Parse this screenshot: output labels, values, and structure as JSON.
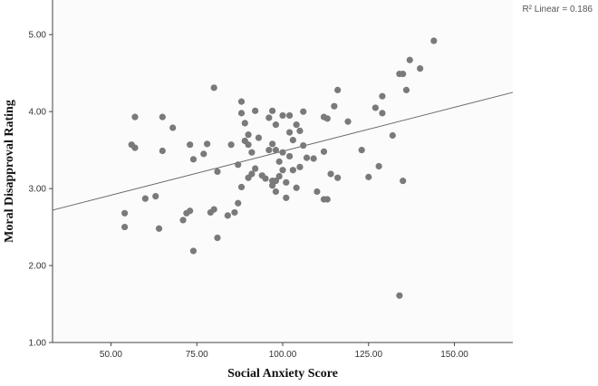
{
  "chart_data": {
    "type": "scatter",
    "title": "",
    "xlabel": "Social Anxiety Score",
    "ylabel": "Moral Disapproval Rating",
    "xlim": [
      33,
      167
    ],
    "ylim": [
      1.0,
      5.45
    ],
    "x_ticks": [
      "50.00",
      "75.00",
      "100.00",
      "125.00",
      "150.00"
    ],
    "y_ticks": [
      "1.00",
      "2.00",
      "3.00",
      "4.00",
      "5.00"
    ],
    "annotation": "R² Linear = 0.186",
    "fit_line": {
      "x": [
        33,
        167
      ],
      "y": [
        2.72,
        4.25
      ]
    },
    "colors": {
      "points": "#7a7a7a",
      "line": "#666666",
      "axis": "#444444",
      "plot_bg": "#fbfbfb"
    },
    "points": [
      {
        "x": 54.0,
        "y": 2.68
      },
      {
        "x": 54.0,
        "y": 2.5
      },
      {
        "x": 56.0,
        "y": 3.57
      },
      {
        "x": 57.0,
        "y": 3.53
      },
      {
        "x": 57.0,
        "y": 3.93
      },
      {
        "x": 60.0,
        "y": 2.87
      },
      {
        "x": 63.0,
        "y": 2.9
      },
      {
        "x": 64.0,
        "y": 2.48
      },
      {
        "x": 65.0,
        "y": 3.93
      },
      {
        "x": 65.0,
        "y": 3.49
      },
      {
        "x": 68.0,
        "y": 3.79
      },
      {
        "x": 71.0,
        "y": 2.59
      },
      {
        "x": 72.0,
        "y": 2.68
      },
      {
        "x": 73.0,
        "y": 3.57
      },
      {
        "x": 73.0,
        "y": 2.71
      },
      {
        "x": 74.0,
        "y": 3.38
      },
      {
        "x": 74.0,
        "y": 2.19
      },
      {
        "x": 77.0,
        "y": 3.45
      },
      {
        "x": 78.0,
        "y": 3.58
      },
      {
        "x": 79.0,
        "y": 2.69
      },
      {
        "x": 80.0,
        "y": 4.31
      },
      {
        "x": 80.0,
        "y": 2.73
      },
      {
        "x": 81.0,
        "y": 3.22
      },
      {
        "x": 81.0,
        "y": 2.36
      },
      {
        "x": 84.0,
        "y": 2.65
      },
      {
        "x": 85.0,
        "y": 3.57
      },
      {
        "x": 86.0,
        "y": 2.69
      },
      {
        "x": 87.0,
        "y": 3.31
      },
      {
        "x": 87.0,
        "y": 2.81
      },
      {
        "x": 88.0,
        "y": 4.13
      },
      {
        "x": 88.0,
        "y": 3.98
      },
      {
        "x": 88.0,
        "y": 3.02
      },
      {
        "x": 89.0,
        "y": 3.85
      },
      {
        "x": 89.0,
        "y": 3.62
      },
      {
        "x": 90.0,
        "y": 3.7
      },
      {
        "x": 90.0,
        "y": 3.57
      },
      {
        "x": 90.0,
        "y": 3.14
      },
      {
        "x": 91.0,
        "y": 3.47
      },
      {
        "x": 91.0,
        "y": 3.19
      },
      {
        "x": 92.0,
        "y": 4.01
      },
      {
        "x": 92.0,
        "y": 3.26
      },
      {
        "x": 93.0,
        "y": 3.66
      },
      {
        "x": 94.0,
        "y": 3.17
      },
      {
        "x": 95.0,
        "y": 3.13
      },
      {
        "x": 96.0,
        "y": 3.92
      },
      {
        "x": 96.0,
        "y": 3.5
      },
      {
        "x": 97.0,
        "y": 4.01
      },
      {
        "x": 97.0,
        "y": 3.58
      },
      {
        "x": 97.0,
        "y": 3.1
      },
      {
        "x": 97.0,
        "y": 3.04
      },
      {
        "x": 98.0,
        "y": 3.83
      },
      {
        "x": 98.0,
        "y": 3.5
      },
      {
        "x": 98.0,
        "y": 3.1
      },
      {
        "x": 98.0,
        "y": 2.96
      },
      {
        "x": 99.0,
        "y": 3.35
      },
      {
        "x": 99.0,
        "y": 3.16
      },
      {
        "x": 100.0,
        "y": 3.95
      },
      {
        "x": 100.0,
        "y": 3.47
      },
      {
        "x": 100.0,
        "y": 3.24
      },
      {
        "x": 101.0,
        "y": 3.08
      },
      {
        "x": 101.0,
        "y": 2.88
      },
      {
        "x": 102.0,
        "y": 3.95
      },
      {
        "x": 102.0,
        "y": 3.73
      },
      {
        "x": 102.0,
        "y": 3.42
      },
      {
        "x": 103.0,
        "y": 3.63
      },
      {
        "x": 103.0,
        "y": 3.24
      },
      {
        "x": 104.0,
        "y": 3.83
      },
      {
        "x": 104.0,
        "y": 3.01
      },
      {
        "x": 105.0,
        "y": 3.75
      },
      {
        "x": 105.0,
        "y": 3.28
      },
      {
        "x": 106.0,
        "y": 4.0
      },
      {
        "x": 106.0,
        "y": 3.56
      },
      {
        "x": 107.0,
        "y": 3.4
      },
      {
        "x": 109.0,
        "y": 3.39
      },
      {
        "x": 110.0,
        "y": 2.96
      },
      {
        "x": 112.0,
        "y": 3.93
      },
      {
        "x": 112.0,
        "y": 3.48
      },
      {
        "x": 112.0,
        "y": 2.86
      },
      {
        "x": 113.0,
        "y": 3.91
      },
      {
        "x": 113.0,
        "y": 2.86
      },
      {
        "x": 114.0,
        "y": 3.19
      },
      {
        "x": 115.0,
        "y": 4.07
      },
      {
        "x": 116.0,
        "y": 4.28
      },
      {
        "x": 116.0,
        "y": 3.14
      },
      {
        "x": 119.0,
        "y": 3.87
      },
      {
        "x": 123.0,
        "y": 3.5
      },
      {
        "x": 125.0,
        "y": 3.15
      },
      {
        "x": 127.0,
        "y": 4.05
      },
      {
        "x": 128.0,
        "y": 3.29
      },
      {
        "x": 129.0,
        "y": 4.2
      },
      {
        "x": 129.0,
        "y": 3.98
      },
      {
        "x": 132.0,
        "y": 3.69
      },
      {
        "x": 134.0,
        "y": 4.49
      },
      {
        "x": 134.0,
        "y": 1.61
      },
      {
        "x": 135.0,
        "y": 4.49
      },
      {
        "x": 135.0,
        "y": 3.1
      },
      {
        "x": 136.0,
        "y": 4.28
      },
      {
        "x": 137.0,
        "y": 4.67
      },
      {
        "x": 140.0,
        "y": 4.56
      },
      {
        "x": 144.0,
        "y": 4.92
      }
    ]
  }
}
